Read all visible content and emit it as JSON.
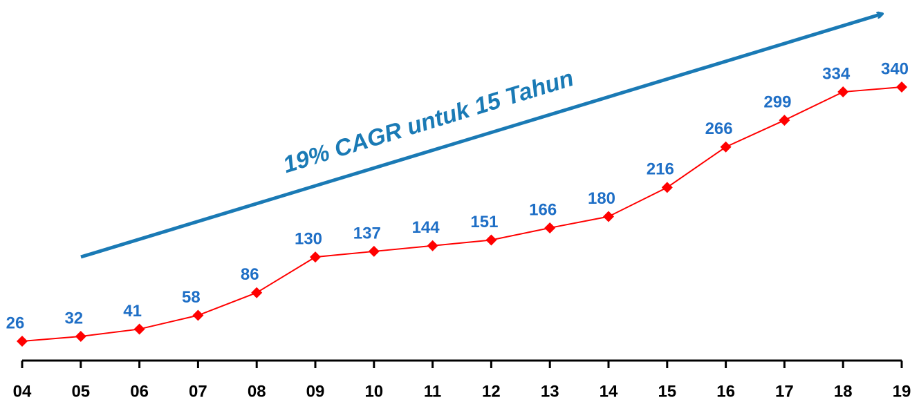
{
  "chart_data": {
    "type": "line",
    "annotation": "19% CAGR untuk 15 Tahun",
    "categories": [
      "04",
      "05",
      "06",
      "07",
      "08",
      "09",
      "10",
      "11",
      "12",
      "13",
      "14",
      "15",
      "16",
      "17",
      "18",
      "19"
    ],
    "values": [
      26,
      32,
      41,
      58,
      86,
      130,
      137,
      144,
      151,
      166,
      180,
      216,
      266,
      299,
      334,
      340
    ],
    "color": "#ff0000"
  }
}
